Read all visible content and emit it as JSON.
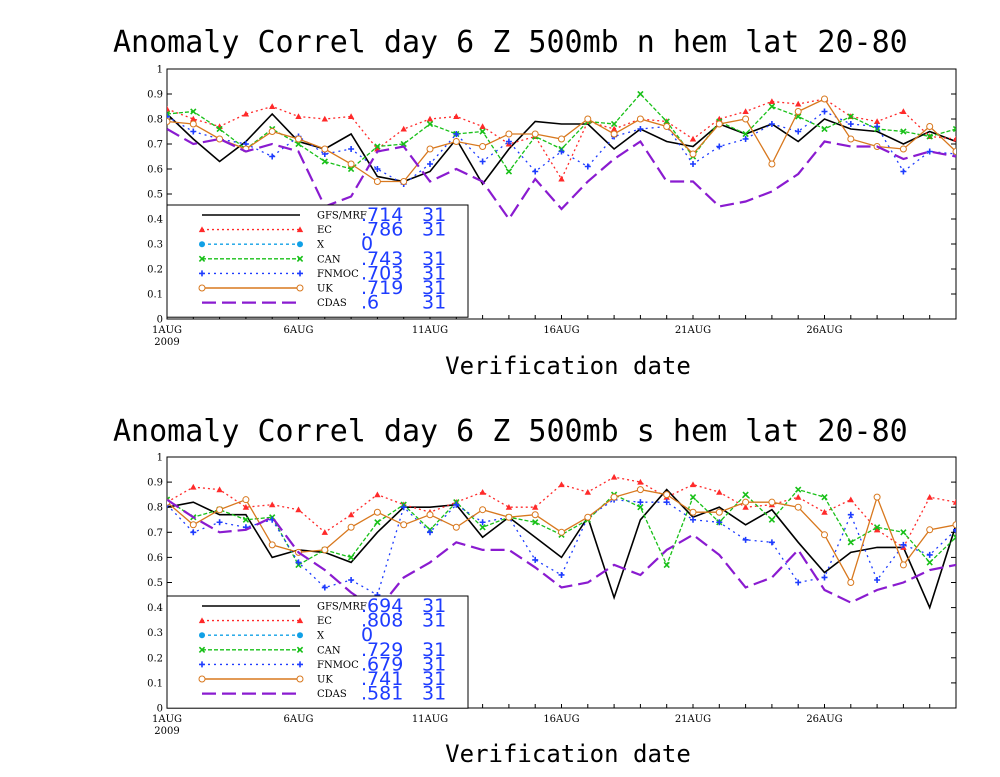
{
  "chart_data": [
    {
      "type": "line",
      "title": "Anomaly Correl  day 6  Z 500mb  n hem  lat 20-80",
      "xlabel": "Verification date",
      "ylabel": "",
      "ylim": [
        0,
        1
      ],
      "y_ticks": [
        "0",
        "0.1",
        "0.2",
        "0.3",
        "0.4",
        "0.5",
        "0.6",
        "0.7",
        "0.8",
        "0.9",
        "1"
      ],
      "x_ticks": [
        "1AUG",
        "6AUG",
        "11AUG",
        "16AUG",
        "21AUG",
        "26AUG"
      ],
      "x_year": "2009",
      "x_start": "2009-08-01",
      "x_end": "2009-08-30",
      "legend_position": "lower-left",
      "series": [
        {
          "name": "GFS/MRF",
          "score": ".714",
          "count": "31",
          "color": "#000000",
          "dash": "",
          "marker": "none",
          "values": [
            0.82,
            0.72,
            0.63,
            0.71,
            0.82,
            0.71,
            0.68,
            0.74,
            0.57,
            0.55,
            0.59,
            0.72,
            0.54,
            0.68,
            0.79,
            0.78,
            0.78,
            0.68,
            0.76,
            0.71,
            0.69,
            0.78,
            0.74,
            0.78,
            0.71,
            0.8,
            0.76,
            0.75,
            0.7,
            0.75,
            0.71
          ]
        },
        {
          "name": "EC",
          "score": ".786",
          "count": "31",
          "color": "#ff2a2a",
          "dash": "2,3",
          "marker": "triangle",
          "values": [
            0.84,
            0.8,
            0.77,
            0.82,
            0.85,
            0.81,
            0.8,
            0.81,
            0.68,
            0.76,
            0.8,
            0.81,
            0.77,
            0.7,
            0.73,
            0.56,
            0.79,
            0.76,
            0.8,
            0.79,
            0.72,
            0.8,
            0.83,
            0.87,
            0.86,
            0.88,
            0.81,
            0.79,
            0.83,
            0.73,
            0.72
          ]
        },
        {
          "name": "X",
          "score": "0",
          "count": "",
          "color": "#10a0e6",
          "dash": "3,3",
          "marker": "dot",
          "values": []
        },
        {
          "name": "CAN",
          "score": ".743",
          "count": "31",
          "color": "#18c018",
          "dash": "4,2",
          "marker": "x",
          "values": [
            0.82,
            0.83,
            0.76,
            0.68,
            0.76,
            0.7,
            0.63,
            0.6,
            0.69,
            0.7,
            0.78,
            0.74,
            0.75,
            0.59,
            0.73,
            0.68,
            0.79,
            0.78,
            0.9,
            0.79,
            0.65,
            0.79,
            0.74,
            0.85,
            0.81,
            0.76,
            0.81,
            0.76,
            0.75,
            0.73,
            0.76
          ]
        },
        {
          "name": "FNMOC",
          "score": ".703",
          "count": "31",
          "color": "#1e3cff",
          "dash": "2,4",
          "marker": "plus",
          "values": [
            0.81,
            0.75,
            0.72,
            0.7,
            0.65,
            0.73,
            0.66,
            0.68,
            0.6,
            0.54,
            0.62,
            0.74,
            0.63,
            0.71,
            0.59,
            0.67,
            0.61,
            0.73,
            0.76,
            0.77,
            0.62,
            0.69,
            0.72,
            0.78,
            0.75,
            0.83,
            0.78,
            0.77,
            0.59,
            0.67,
            0.66
          ]
        },
        {
          "name": "UK",
          "score": ".719",
          "count": "31",
          "color": "#d8781e",
          "dash": "",
          "marker": "circle",
          "values": [
            0.79,
            0.78,
            0.72,
            0.68,
            0.75,
            0.72,
            0.68,
            0.62,
            0.55,
            0.55,
            0.68,
            0.71,
            0.69,
            0.74,
            0.74,
            0.72,
            0.8,
            0.74,
            0.8,
            0.77,
            0.66,
            0.78,
            0.8,
            0.62,
            0.83,
            0.88,
            0.72,
            0.69,
            0.68,
            0.77,
            0.67
          ]
        },
        {
          "name": "CDAS",
          "score": ".6",
          "count": "31",
          "color": "#8a1bd0",
          "dash": "14,6",
          "marker": "none",
          "values": [
            0.76,
            0.7,
            0.72,
            0.67,
            0.7,
            0.67,
            0.45,
            0.49,
            0.67,
            0.69,
            0.55,
            0.6,
            0.55,
            0.4,
            0.56,
            0.44,
            0.55,
            0.64,
            0.71,
            0.55,
            0.55,
            0.45,
            0.47,
            0.51,
            0.58,
            0.71,
            0.69,
            0.69,
            0.64,
            0.67,
            0.65
          ]
        }
      ]
    },
    {
      "type": "line",
      "title": "Anomaly Correl  day 6  Z 500mb  s hem  lat 20-80",
      "xlabel": "Verification date",
      "ylabel": "",
      "ylim": [
        0,
        1
      ],
      "y_ticks": [
        "0",
        "0.1",
        "0.2",
        "0.3",
        "0.4",
        "0.5",
        "0.6",
        "0.7",
        "0.8",
        "0.9",
        "1"
      ],
      "x_ticks": [
        "1AUG",
        "6AUG",
        "11AUG",
        "16AUG",
        "21AUG",
        "26AUG"
      ],
      "x_year": "2009",
      "x_start": "2009-08-01",
      "x_end": "2009-08-30",
      "legend_position": "lower-left",
      "series": [
        {
          "name": "GFS/MRF",
          "score": ".694",
          "count": "31",
          "color": "#000000",
          "dash": "",
          "marker": "none",
          "values": [
            0.8,
            0.82,
            0.77,
            0.77,
            0.6,
            0.63,
            0.62,
            0.58,
            0.7,
            0.8,
            0.8,
            0.81,
            0.68,
            0.76,
            0.68,
            0.6,
            0.76,
            0.44,
            0.75,
            0.87,
            0.76,
            0.8,
            0.73,
            0.79,
            0.66,
            0.54,
            0.62,
            0.64,
            0.64,
            0.4,
            0.73
          ]
        },
        {
          "name": "EC",
          "score": ".808",
          "count": "31",
          "color": "#ff2a2a",
          "dash": "2,3",
          "marker": "triangle",
          "values": [
            0.82,
            0.88,
            0.87,
            0.8,
            0.81,
            0.79,
            0.7,
            0.77,
            0.85,
            0.81,
            0.78,
            0.82,
            0.86,
            0.8,
            0.8,
            0.89,
            0.86,
            0.92,
            0.9,
            0.84,
            0.89,
            0.86,
            0.8,
            0.81,
            0.84,
            0.78,
            0.83,
            0.71,
            0.64,
            0.84,
            0.82
          ]
        },
        {
          "name": "X",
          "score": "0",
          "count": "",
          "color": "#10a0e6",
          "dash": "3,3",
          "marker": "dot",
          "values": []
        },
        {
          "name": "CAN",
          "score": ".729",
          "count": "31",
          "color": "#18c018",
          "dash": "4,2",
          "marker": "x",
          "values": [
            0.83,
            0.76,
            0.79,
            0.75,
            0.76,
            0.57,
            0.63,
            0.6,
            0.74,
            0.81,
            0.71,
            0.82,
            0.72,
            0.76,
            0.74,
            0.69,
            0.75,
            0.85,
            0.8,
            0.57,
            0.84,
            0.74,
            0.85,
            0.75,
            0.87,
            0.84,
            0.66,
            0.72,
            0.7,
            0.58,
            0.68
          ]
        },
        {
          "name": "FNMOC",
          "score": ".679",
          "count": "31",
          "color": "#1e3cff",
          "dash": "2,4",
          "marker": "plus",
          "values": [
            0.81,
            0.7,
            0.74,
            0.72,
            0.75,
            0.58,
            0.48,
            0.51,
            0.45,
            0.8,
            0.7,
            0.81,
            0.74,
            0.76,
            0.59,
            0.53,
            0.76,
            0.83,
            0.82,
            0.82,
            0.75,
            0.74,
            0.67,
            0.66,
            0.5,
            0.52,
            0.77,
            0.51,
            0.65,
            0.61,
            0.71
          ]
        },
        {
          "name": "UK",
          "score": ".741",
          "count": "31",
          "color": "#d8781e",
          "dash": "",
          "marker": "circle",
          "values": [
            0.82,
            0.73,
            0.79,
            0.83,
            0.65,
            0.62,
            0.63,
            0.72,
            0.78,
            0.73,
            0.77,
            0.72,
            0.79,
            0.76,
            0.77,
            0.7,
            0.76,
            0.84,
            0.87,
            0.85,
            0.78,
            0.78,
            0.82,
            0.82,
            0.8,
            0.69,
            0.5,
            0.84,
            0.57,
            0.71,
            0.73
          ]
        },
        {
          "name": "CDAS",
          "score": ".581",
          "count": "31",
          "color": "#8a1bd0",
          "dash": "14,6",
          "marker": "none",
          "values": [
            0.83,
            0.76,
            0.7,
            0.71,
            0.76,
            0.62,
            0.55,
            0.46,
            0.39,
            0.52,
            0.58,
            0.66,
            0.63,
            0.63,
            0.56,
            0.48,
            0.5,
            0.57,
            0.53,
            0.63,
            0.69,
            0.61,
            0.48,
            0.52,
            0.63,
            0.47,
            0.42,
            0.47,
            0.5,
            0.55,
            0.57
          ]
        }
      ]
    }
  ]
}
